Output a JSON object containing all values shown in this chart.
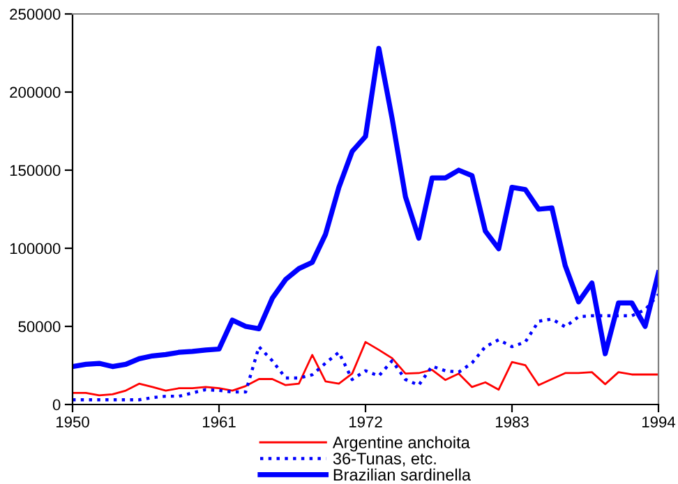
{
  "chart_data": {
    "type": "line",
    "x": [
      1950,
      1951,
      1952,
      1953,
      1954,
      1955,
      1956,
      1957,
      1958,
      1959,
      1960,
      1961,
      1962,
      1963,
      1964,
      1965,
      1966,
      1967,
      1968,
      1969,
      1970,
      1971,
      1972,
      1973,
      1974,
      1975,
      1976,
      1977,
      1978,
      1979,
      1980,
      1981,
      1982,
      1983,
      1984,
      1985,
      1986,
      1987,
      1988,
      1989,
      1990,
      1991,
      1992,
      1993,
      1994
    ],
    "series": [
      {
        "name": "Argentine anchoita",
        "color": "#ff0000",
        "line_style": "solid",
        "values": [
          7400,
          7400,
          5900,
          6500,
          8900,
          13300,
          11200,
          8900,
          10400,
          10400,
          11200,
          10400,
          8900,
          11800,
          16300,
          16300,
          12400,
          13300,
          31700,
          14800,
          13300,
          19800,
          40000,
          35000,
          29600,
          19800,
          20100,
          22200,
          15700,
          19800,
          11200,
          14200,
          9500,
          27200,
          25200,
          12400,
          16300,
          20100,
          20100,
          20700,
          13000,
          20700,
          19200,
          19200,
          19200
        ]
      },
      {
        "name": "36-Tunas, etc.",
        "color": "#0000ff",
        "line_style": "dotted",
        "values": [
          3000,
          3000,
          3000,
          3000,
          3000,
          3000,
          4400,
          5300,
          5300,
          7400,
          9500,
          9000,
          8000,
          8000,
          37000,
          28000,
          17000,
          17000,
          19000,
          26500,
          33400,
          16000,
          21600,
          18300,
          28000,
          16000,
          12400,
          24500,
          21600,
          20700,
          26600,
          37000,
          41400,
          37000,
          40000,
          53300,
          54700,
          49700,
          56200,
          56800,
          56800,
          56800,
          56800,
          60700,
          70400
        ]
      },
      {
        "name": "Brazilian sardinella",
        "color": "#0000ff",
        "line_style": "solid",
        "values": [
          24300,
          25700,
          26300,
          24300,
          25700,
          29300,
          31100,
          32000,
          33400,
          34000,
          34900,
          35500,
          54000,
          50000,
          48500,
          68000,
          80000,
          87000,
          91000,
          109000,
          139000,
          162000,
          171600,
          228000,
          183000,
          133000,
          106500,
          145000,
          145000,
          150000,
          146500,
          111000,
          99700,
          139000,
          137600,
          125000,
          125800,
          88800,
          65700,
          77800,
          32500,
          65000,
          65000,
          50000,
          84300
        ]
      }
    ],
    "xlim": [
      1950,
      1994
    ],
    "xticks": [
      1950,
      1961,
      1972,
      1983,
      1994
    ],
    "ylim": [
      0,
      250000
    ],
    "yticks": [
      0,
      50000,
      100000,
      150000,
      200000,
      250000
    ],
    "grid": false,
    "legend": "bottom",
    "marker": "none"
  }
}
